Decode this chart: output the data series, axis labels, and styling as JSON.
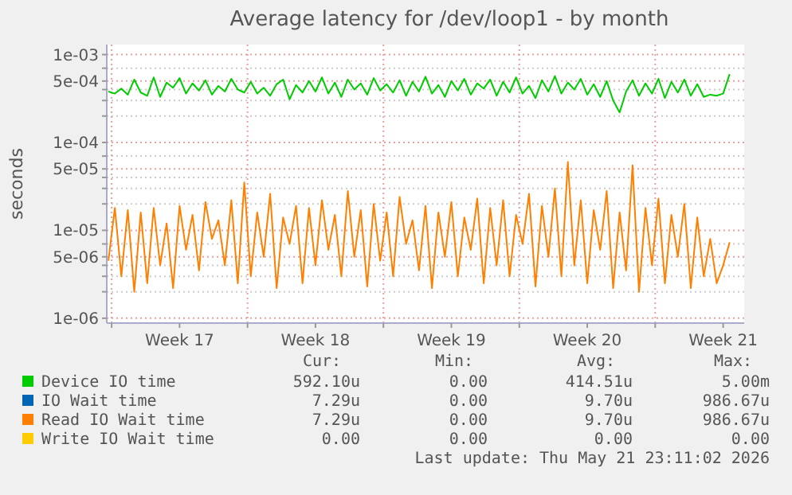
{
  "chart_data": {
    "type": "line",
    "title": "Average latency for /dev/loop1 - by month",
    "ylabel": "seconds",
    "log": true,
    "grid": true,
    "legend": "bottom",
    "line_style": "solid",
    "x": [
      "2026-04-19T20:00",
      "2026-04-20T04:00",
      "2026-04-20T12:00",
      "2026-04-20T20:00",
      "2026-04-21T04:00",
      "2026-04-21T12:00",
      "2026-04-21T20:00",
      "2026-04-22T04:00",
      "2026-04-22T12:00",
      "2026-04-22T20:00",
      "2026-04-23T04:00",
      "2026-04-23T12:00",
      "2026-04-23T20:00",
      "2026-04-24T04:00",
      "2026-04-24T12:00",
      "2026-04-24T20:00",
      "2026-04-25T04:00",
      "2026-04-25T12:00",
      "2026-04-25T20:00",
      "2026-04-26T04:00",
      "2026-04-26T12:00",
      "2026-04-26T20:00",
      "2026-04-27T04:00",
      "2026-04-27T12:00",
      "2026-04-27T20:00",
      "2026-04-28T04:00",
      "2026-04-28T12:00",
      "2026-04-28T20:00",
      "2026-04-29T04:00",
      "2026-04-29T12:00",
      "2026-04-29T20:00",
      "2026-04-30T04:00",
      "2026-04-30T12:00",
      "2026-04-30T20:00",
      "2026-05-01T04:00",
      "2026-05-01T12:00",
      "2026-05-01T20:00",
      "2026-05-02T04:00",
      "2026-05-02T12:00",
      "2026-05-02T20:00",
      "2026-05-03T04:00",
      "2026-05-03T12:00",
      "2026-05-03T20:00",
      "2026-05-04T04:00",
      "2026-05-04T12:00",
      "2026-05-04T20:00",
      "2026-05-05T04:00",
      "2026-05-05T12:00",
      "2026-05-05T20:00",
      "2026-05-06T04:00",
      "2026-05-06T12:00",
      "2026-05-06T20:00",
      "2026-05-07T04:00",
      "2026-05-07T12:00",
      "2026-05-07T20:00",
      "2026-05-08T04:00",
      "2026-05-08T12:00",
      "2026-05-08T20:00",
      "2026-05-09T04:00",
      "2026-05-09T12:00",
      "2026-05-09T20:00",
      "2026-05-10T04:00",
      "2026-05-10T12:00",
      "2026-05-10T20:00",
      "2026-05-11T04:00",
      "2026-05-11T12:00",
      "2026-05-11T20:00",
      "2026-05-12T04:00",
      "2026-05-12T12:00",
      "2026-05-12T20:00",
      "2026-05-13T04:00",
      "2026-05-13T12:00",
      "2026-05-13T20:00",
      "2026-05-14T04:00",
      "2026-05-14T12:00",
      "2026-05-14T20:00",
      "2026-05-15T04:00",
      "2026-05-15T12:00",
      "2026-05-15T20:00",
      "2026-05-16T04:00",
      "2026-05-16T12:00",
      "2026-05-16T20:00",
      "2026-05-17T04:00",
      "2026-05-17T12:00",
      "2026-05-17T20:00",
      "2026-05-18T04:00",
      "2026-05-18T12:00",
      "2026-05-18T20:00",
      "2026-05-19T04:00",
      "2026-05-19T12:00",
      "2026-05-19T20:00",
      "2026-05-20T04:00",
      "2026-05-20T12:00",
      "2026-05-20T20:00",
      "2026-05-21T04:00",
      "2026-05-21T12:00",
      "2026-05-21T20:00"
    ],
    "xlim": [
      "2026-04-19T18:00",
      "2026-05-22T14:00"
    ],
    "xticks": [
      {
        "value": "2026-04-20",
        "label": null
      },
      {
        "value": "2026-04-23T12:00",
        "label": "Week 17"
      },
      {
        "value": "2026-04-27",
        "label": null
      },
      {
        "value": "2026-04-30T12:00",
        "label": "Week 18"
      },
      {
        "value": "2026-05-04",
        "label": null
      },
      {
        "value": "2026-05-07T12:00",
        "label": "Week 19"
      },
      {
        "value": "2026-05-11",
        "label": null
      },
      {
        "value": "2026-05-14T12:00",
        "label": "Week 20"
      },
      {
        "value": "2026-05-18",
        "label": null
      },
      {
        "value": "2026-05-21T12:00",
        "label": "Week 21"
      }
    ],
    "ylim": [
      8.8e-07,
      0.0013
    ],
    "yticks": [
      {
        "value": 1e-06,
        "label": "1e-06"
      },
      {
        "value": 2e-06,
        "label": null
      },
      {
        "value": 3e-06,
        "label": null
      },
      {
        "value": 4e-06,
        "label": null
      },
      {
        "value": 5e-06,
        "label": "5e-06"
      },
      {
        "value": 7e-06,
        "label": null
      },
      {
        "value": 1e-05,
        "label": "1e-05"
      },
      {
        "value": 2e-05,
        "label": null
      },
      {
        "value": 3e-05,
        "label": null
      },
      {
        "value": 4e-05,
        "label": null
      },
      {
        "value": 5e-05,
        "label": "5e-05"
      },
      {
        "value": 7e-05,
        "label": null
      },
      {
        "value": 0.0001,
        "label": "1e-04"
      },
      {
        "value": 0.0002,
        "label": null
      },
      {
        "value": 0.0003,
        "label": null
      },
      {
        "value": 0.0004,
        "label": null
      },
      {
        "value": 0.0005,
        "label": "5e-04"
      },
      {
        "value": 0.0007,
        "label": null
      },
      {
        "value": 0.001,
        "label": "1e-03"
      }
    ],
    "series": [
      {
        "name": "Device IO time",
        "color": "#00cc00",
        "values": [
          0.00038,
          0.00036,
          0.00041,
          0.00035,
          0.00052,
          0.00037,
          0.00034,
          0.00055,
          0.00033,
          0.00048,
          0.00042,
          0.00054,
          0.00036,
          0.00047,
          0.00039,
          0.00051,
          0.00035,
          0.00044,
          0.00038,
          0.00053,
          0.0004,
          0.00037,
          0.00049,
          0.00036,
          0.00042,
          0.00034,
          0.00046,
          0.00052,
          0.00031,
          0.00045,
          0.00037,
          0.0005,
          0.00038,
          0.00055,
          0.00036,
          0.00048,
          0.00033,
          0.00052,
          0.0004,
          0.00047,
          0.00035,
          0.00054,
          0.00039,
          0.00046,
          0.00037,
          0.00051,
          0.00034,
          0.00049,
          0.00038,
          0.00056,
          0.00036,
          0.00045,
          0.00033,
          0.0005,
          0.00039,
          0.00053,
          0.00035,
          0.00047,
          0.00041,
          0.00052,
          0.00034,
          0.00049,
          0.00037,
          0.00055,
          0.00036,
          0.00044,
          0.00032,
          0.00051,
          0.00038,
          0.00057,
          0.00036,
          0.00048,
          0.0004,
          0.00053,
          0.00035,
          0.00046,
          0.00033,
          0.0005,
          0.0003,
          0.00022,
          0.00038,
          0.00051,
          0.00034,
          0.00047,
          0.00036,
          0.00053,
          0.00032,
          0.00049,
          0.00037,
          0.00052,
          0.00034,
          0.00046,
          0.00033,
          0.00035,
          0.00034,
          0.00036,
          0.0006
        ]
      },
      {
        "name": "IO Wait time",
        "color": "#0066b3",
        "values": [
          null,
          null,
          null,
          null,
          null,
          null,
          null,
          null,
          null,
          null,
          null,
          null,
          null,
          null,
          null,
          null,
          null,
          null,
          null,
          null,
          null,
          null,
          null,
          null,
          null,
          null,
          null,
          null,
          null,
          null,
          null,
          null,
          null,
          null,
          null,
          null,
          null,
          null,
          null,
          null,
          null,
          null,
          null,
          null,
          null,
          null,
          null,
          null,
          null,
          null,
          null,
          null,
          null,
          null,
          null,
          null,
          null,
          null,
          null,
          null,
          null,
          null,
          null,
          null,
          null,
          null,
          null,
          null,
          null,
          null,
          null,
          null,
          null,
          null,
          null,
          null,
          null,
          null,
          null,
          null,
          null,
          null,
          null,
          null,
          null,
          null,
          null,
          null,
          null,
          null,
          null,
          null,
          null,
          null,
          null,
          null,
          null
        ]
      },
      {
        "name": "Read IO Wait time",
        "color": "#ff8000",
        "values": [
          4.5e-06,
          1.8e-05,
          3e-06,
          1.7e-05,
          2e-06,
          1.6e-05,
          2.5e-06,
          1.8e-05,
          4e-06,
          1.2e-05,
          2.2e-06,
          1.9e-05,
          6e-06,
          1.5e-05,
          3.5e-06,
          2.1e-05,
          8e-06,
          1.3e-05,
          4e-06,
          2.2e-05,
          2.5e-06,
          3.5e-05,
          3e-06,
          1.6e-05,
          5e-06,
          2.6e-05,
          2.2e-06,
          1.4e-05,
          7e-06,
          1.9e-05,
          2.5e-06,
          1.8e-05,
          4e-06,
          2.2e-05,
          6e-06,
          1.5e-05,
          3e-06,
          2.8e-05,
          5e-06,
          1.7e-05,
          2.3e-06,
          2e-05,
          4.5e-06,
          1.6e-05,
          3e-06,
          2.4e-05,
          7e-06,
          1.3e-05,
          3.5e-06,
          1.9e-05,
          2.2e-06,
          1.6e-05,
          5e-06,
          2.1e-05,
          3e-06,
          1.4e-05,
          6e-06,
          2.3e-05,
          2.5e-06,
          1.8e-05,
          4e-06,
          2.2e-05,
          3e-06,
          1.5e-05,
          7e-06,
          2.6e-05,
          2.3e-06,
          1.9e-05,
          5e-06,
          3e-05,
          3e-06,
          6e-05,
          4e-06,
          2.2e-05,
          2.5e-06,
          1.7e-05,
          6e-06,
          2.8e-05,
          2.2e-06,
          1.6e-05,
          3.5e-06,
          5.5e-05,
          2e-06,
          1.8e-05,
          4e-06,
          2.3e-05,
          2.5e-06,
          1.5e-05,
          5e-06,
          2e-05,
          2.2e-06,
          1.4e-05,
          3e-06,
          8e-06,
          2.5e-06,
          4e-06,
          7.3e-06
        ]
      },
      {
        "name": "Write IO Wait time",
        "color": "#ffcc00",
        "values": [
          null,
          null,
          null,
          null,
          null,
          null,
          null,
          null,
          null,
          null,
          null,
          null,
          null,
          null,
          null,
          null,
          null,
          null,
          null,
          null,
          null,
          null,
          null,
          null,
          null,
          null,
          null,
          null,
          null,
          null,
          null,
          null,
          null,
          null,
          null,
          null,
          null,
          null,
          null,
          null,
          null,
          null,
          null,
          null,
          null,
          null,
          null,
          null,
          null,
          null,
          null,
          null,
          null,
          null,
          null,
          null,
          null,
          null,
          null,
          null,
          null,
          null,
          null,
          null,
          null,
          null,
          null,
          null,
          null,
          null,
          null,
          null,
          null,
          null,
          null,
          null,
          null,
          null,
          null,
          null,
          null,
          null,
          null,
          null,
          null,
          null,
          null,
          null,
          null,
          null,
          null,
          null,
          null,
          null,
          null,
          null,
          null
        ]
      }
    ],
    "annotations": [
      "Cur:",
      "Min:",
      "Avg:",
      "Max:",
      "592.10u",
      "0.00",
      "414.51u",
      "5.00m",
      "7.29u",
      "0.00",
      "9.70u",
      "986.67u",
      "7.29u",
      "0.00",
      "9.70u",
      "986.67u",
      "0.00",
      "0.00",
      "0.00",
      "0.00",
      "Last update: Thu May 21 23:11:02 2026"
    ]
  }
}
